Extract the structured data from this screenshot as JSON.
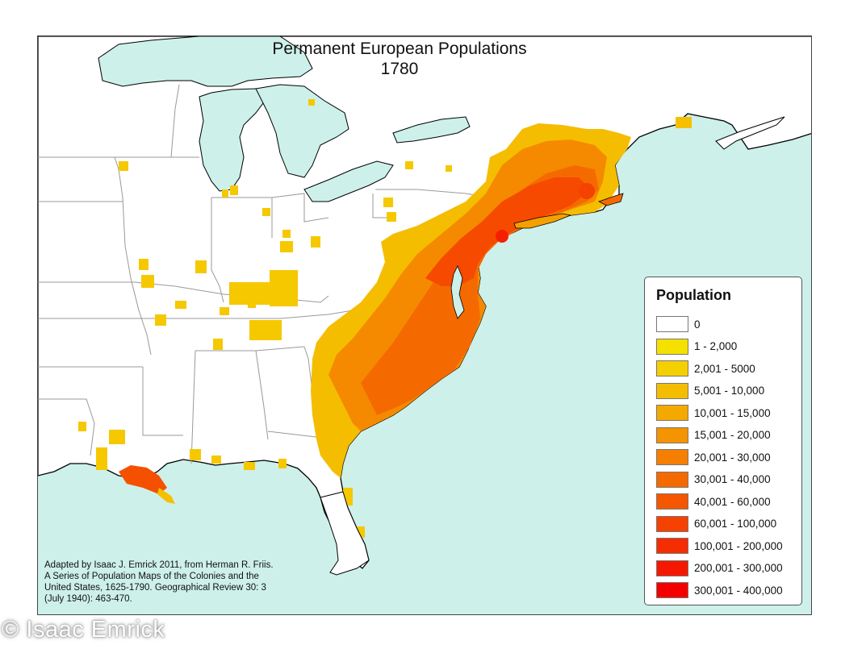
{
  "map": {
    "title_line1": "Permanent European Populations",
    "title_line2": "1780",
    "water_color": "#cdf0ea",
    "land_color": "#ffffff"
  },
  "legend": {
    "title": "Population",
    "items": [
      {
        "label": "0",
        "color": "#ffffff"
      },
      {
        "label": "1 - 2,000",
        "color": "#f5e100"
      },
      {
        "label": "2,001 - 5000",
        "color": "#f5d000"
      },
      {
        "label": "5,001 - 10,000",
        "color": "#f5bd00"
      },
      {
        "label": "10,001 - 15,000",
        "color": "#f5a800"
      },
      {
        "label": "15,001 - 20,000",
        "color": "#f59300"
      },
      {
        "label": "20,001 - 30,000",
        "color": "#f57f00"
      },
      {
        "label": "30,001 - 40,000",
        "color": "#f56a00"
      },
      {
        "label": "40,001 - 60,000",
        "color": "#f55600"
      },
      {
        "label": "60,001 - 100,000",
        "color": "#f54200"
      },
      {
        "label": "100,001 - 200,000",
        "color": "#f52d00"
      },
      {
        "label": "200,001 - 300,000",
        "color": "#f51800"
      },
      {
        "label": "300,001 - 400,000",
        "color": "#f50000"
      }
    ]
  },
  "citation": {
    "line1": "Adapted by Isaac J. Emrick 2011, from Herman R. Friis.",
    "line2": "A Series of Population Maps of the Colonies and the",
    "line3": "United States, 1625-1790. Geographical Review 30: 3",
    "line4": "(July 1940): 463-470."
  },
  "watermark": "© Isaac Emrick"
}
